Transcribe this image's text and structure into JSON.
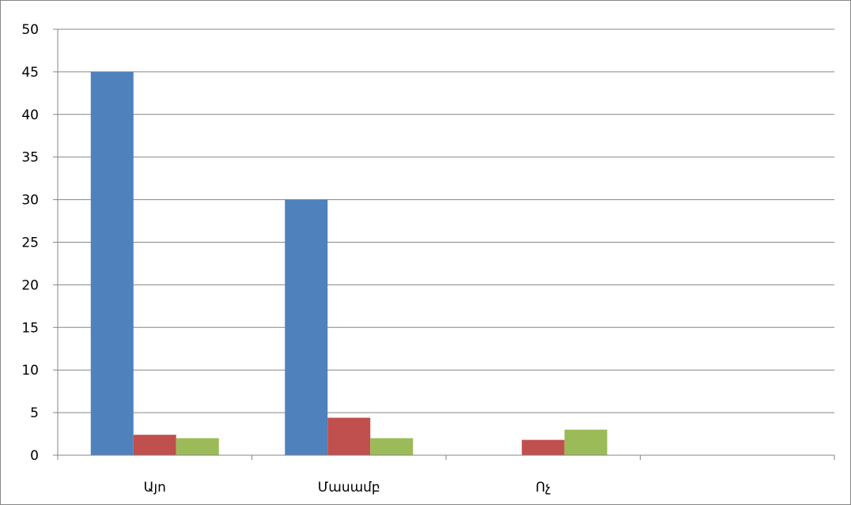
{
  "chart_data": {
    "type": "bar",
    "categories": [
      "Այո",
      "Մասամբ",
      "Ոչ",
      ""
    ],
    "series": [
      {
        "values": [
          45,
          30,
          null,
          null
        ],
        "color": "#4F81BD"
      },
      {
        "values": [
          2.4,
          4.4,
          1.8,
          null
        ],
        "color": "#C0504D"
      },
      {
        "values": [
          2,
          2,
          3,
          null
        ],
        "color": "#9BBB59"
      }
    ],
    "y_ticks": [
      "0",
      "5",
      "10",
      "15",
      "20",
      "25",
      "30",
      "35",
      "40",
      "45",
      "50"
    ],
    "ylim": [
      0,
      50
    ],
    "grid": true,
    "legend": "none"
  }
}
